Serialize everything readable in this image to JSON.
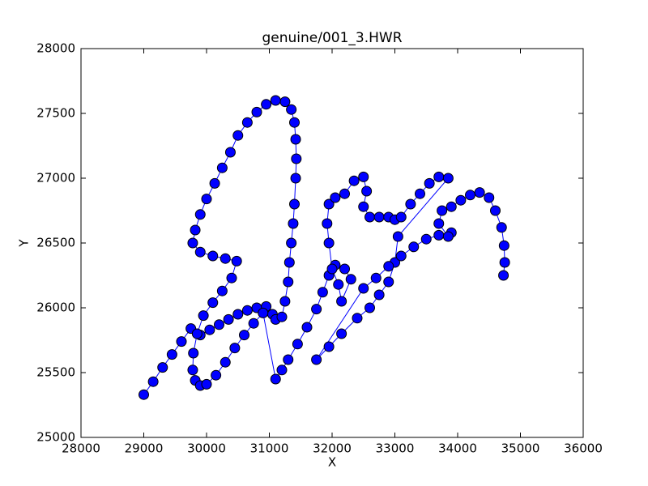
{
  "chart_data": {
    "type": "line",
    "title": "genuine/001_3.HWR",
    "x_label": "X",
    "y_label": "Y",
    "color": "#0000ff",
    "marker": true,
    "grid": false,
    "xlim": [
      28000,
      36000
    ],
    "xticks": [
      28000,
      29000,
      30000,
      31000,
      32000,
      33000,
      34000,
      35000,
      36000
    ],
    "ylim": [
      25000,
      28000
    ],
    "yticks": [
      25000,
      25500,
      26000,
      26500,
      27000,
      27500,
      28000
    ],
    "x": [
      29000,
      29150,
      29300,
      29450,
      29600,
      29750,
      29900,
      30050,
      30200,
      30350,
      30500,
      30650,
      30800,
      30950,
      31050,
      31100,
      31200,
      31250,
      31300,
      31320,
      31350,
      31380,
      31400,
      31420,
      31430,
      31420,
      31400,
      31350,
      31250,
      31100,
      30950,
      30800,
      30650,
      30500,
      30380,
      30250,
      30130,
      30000,
      29900,
      29820,
      29780,
      29900,
      30100,
      30300,
      30480,
      30400,
      30250,
      30100,
      29950,
      29850,
      29790,
      29780,
      29820,
      29900,
      30000,
      30150,
      30300,
      30450,
      30600,
      30750,
      30900,
      31100,
      31200,
      31300,
      31450,
      31600,
      31750,
      31850,
      31950,
      32050,
      32200,
      32300,
      32150,
      32100,
      32000,
      31950,
      31920,
      31950,
      32050,
      32200,
      32350,
      32500,
      32550,
      32500,
      32600,
      32750,
      32900,
      33000,
      33100,
      33250,
      33400,
      33550,
      33700,
      33850,
      33050,
      33000,
      32900,
      32750,
      32600,
      32400,
      32150,
      31950,
      31750,
      32500,
      32700,
      32900,
      33100,
      33300,
      33500,
      33700,
      33900,
      33850,
      33700,
      33750,
      33900,
      34050,
      34200,
      34350,
      34500,
      34600,
      34700,
      34740,
      34750,
      34730
    ],
    "values": [
      25330,
      25430,
      25540,
      25640,
      25740,
      25840,
      25790,
      25830,
      25870,
      25910,
      25950,
      25980,
      26000,
      26010,
      25950,
      25910,
      25930,
      26050,
      26200,
      26350,
      26500,
      26650,
      26800,
      27000,
      27150,
      27300,
      27430,
      27530,
      27590,
      27600,
      27570,
      27510,
      27430,
      27330,
      27200,
      27080,
      26960,
      26840,
      26720,
      26600,
      26500,
      26430,
      26400,
      26380,
      26360,
      26230,
      26130,
      26040,
      25940,
      25800,
      25650,
      25520,
      25440,
      25400,
      25410,
      25480,
      25580,
      25690,
      25790,
      25880,
      25960,
      25450,
      25520,
      25600,
      25720,
      25850,
      25990,
      26120,
      26250,
      26330,
      26300,
      26220,
      26050,
      26180,
      26300,
      26500,
      26650,
      26800,
      26850,
      26880,
      26980,
      27010,
      26900,
      26780,
      26700,
      26700,
      26700,
      26680,
      26700,
      26800,
      26880,
      26960,
      27010,
      27000,
      26550,
      26350,
      26200,
      26100,
      26000,
      25920,
      25800,
      25700,
      25600,
      26150,
      26230,
      26320,
      26400,
      26470,
      26530,
      26560,
      26580,
      26550,
      26650,
      26750,
      26780,
      26830,
      26870,
      26890,
      26850,
      26750,
      26620,
      26480,
      26350,
      26250
    ]
  }
}
